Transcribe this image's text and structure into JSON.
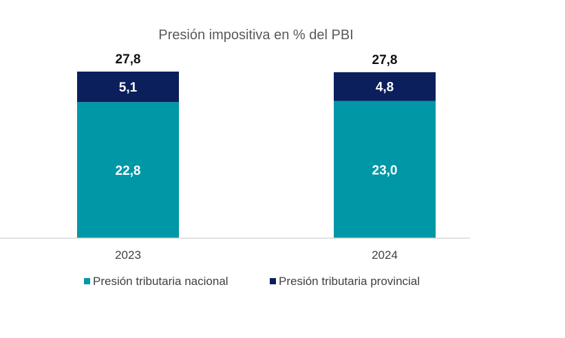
{
  "chart_data": {
    "type": "bar",
    "stacked": true,
    "title": "Presión impositiva en % del PBI",
    "categories": [
      "2023",
      "2024"
    ],
    "series": [
      {
        "name": "Presión tributaria nacional",
        "values": [
          "22,8",
          "23,0"
        ],
        "numeric": [
          22.8,
          23.0
        ],
        "color": "#0097A7"
      },
      {
        "name": "Presión tributaria provincial",
        "values": [
          "5,1",
          "4,8"
        ],
        "numeric": [
          5.1,
          4.8
        ],
        "color": "#0B1F5C"
      }
    ],
    "totals": [
      "27,8",
      "27,8"
    ],
    "ylim": [
      0,
      28.5
    ],
    "grid": false,
    "legend": "bottom"
  }
}
